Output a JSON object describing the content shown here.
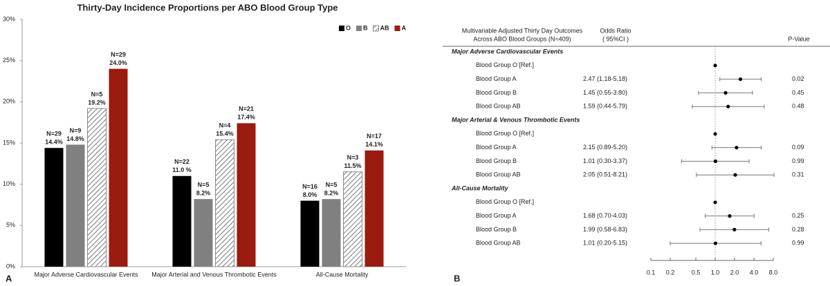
{
  "chart_data": [
    {
      "type": "bar",
      "panel": "A",
      "title": "Thirty-Day Incidence Proportions per ABO Blood Group Type",
      "categories": [
        "Major Adverse Cardiovascular Events",
        "Major Arterial and Venous Thrombotic Events",
        "All-Cause Mortality"
      ],
      "series": [
        {
          "name": "O",
          "color": "#000000",
          "values": [
            14.4,
            11.0,
            8.0
          ],
          "value_labels": [
            "14.4%",
            "11.0 %",
            "8.0%"
          ],
          "n_labels": [
            "N=29",
            "N=22",
            "N=16"
          ]
        },
        {
          "name": "B",
          "color": "#808080",
          "values": [
            14.8,
            8.2,
            8.2
          ],
          "value_labels": [
            "14.8%",
            "8.2%",
            "8.2%"
          ],
          "n_labels": [
            "N=9",
            "N=5",
            "N=5"
          ]
        },
        {
          "name": "AB",
          "color": "#ffffff",
          "pattern": "hatch",
          "values": [
            19.2,
            15.4,
            11.5
          ],
          "value_labels": [
            "19.2%",
            "15.4%",
            "11.5%"
          ],
          "n_labels": [
            "N=5",
            "N=4",
            "N=3"
          ]
        },
        {
          "name": "A",
          "color": "#9b1b0e",
          "values": [
            24.0,
            17.4,
            14.1
          ],
          "value_labels": [
            "24.0%",
            "17.4%",
            "14.1%"
          ],
          "n_labels": [
            "N=29",
            "N=21",
            "N=17"
          ]
        }
      ],
      "ylim": [
        0,
        30
      ],
      "yticks": [
        {
          "value": 0,
          "label": "0%"
        },
        {
          "value": 5,
          "label": "5%"
        },
        {
          "value": 10,
          "label": "10%"
        },
        {
          "value": 15,
          "label": "15%"
        },
        {
          "value": 20,
          "label": "20%"
        },
        {
          "value": 25,
          "label": "25%"
        },
        {
          "value": 30,
          "label": "30%"
        }
      ],
      "legend": "top-right"
    },
    {
      "type": "forest",
      "panel": "B",
      "header": [
        "Multivariable Adjusted Thirty Day Outcomes",
        "Across ABO Blood Groups (N=409)"
      ],
      "or_header": [
        "Odds Ratio",
        "( 95%CI )"
      ],
      "p_header": "P-Value",
      "xscale": "log",
      "xlim": [
        0.1,
        8
      ],
      "xticks": [
        0.1,
        0.2,
        0.5,
        {
          "value": 1,
          "label": "1.0"
        },
        {
          "value": 2,
          "label": "2.0"
        },
        {
          "value": 4,
          "label": "4.0"
        },
        {
          "value": 8,
          "label": "8.0"
        }
      ],
      "reference": 1,
      "groups": [
        {
          "title": "Major Adverse Cardiovascular Events",
          "rows": [
            {
              "label": "Blood Group O [Ref.]",
              "or": 1
            },
            {
              "label": "Blood Group A",
              "or": 2.47,
              "lower": 1.18,
              "upper": 5.18,
              "ci_label": "2.47 (1.18-5.18)",
              "p": 0.02
            },
            {
              "label": "Blood Group B",
              "or": 1.45,
              "lower": 0.55,
              "upper": 3.8,
              "ci_label": "1.45 (0.55-3.80)",
              "p": 0.45
            },
            {
              "label": "Blood Group AB",
              "or": 1.59,
              "lower": 0.44,
              "upper": 5.79,
              "ci_label": "1.59 (0.44-5.79)",
              "p": 0.48
            }
          ]
        },
        {
          "title": "Major Arterial & Venous Thrombotic Events",
          "rows": [
            {
              "label": "Blood Group O [Ref.]",
              "or": 1
            },
            {
              "label": "Blood Group A",
              "or": 2.15,
              "lower": 0.89,
              "upper": 5.2,
              "ci_label": "2.15 (0.89-5.20)",
              "p": 0.09
            },
            {
              "label": "Blood Group B",
              "or": 1.01,
              "lower": 0.3,
              "upper": 3.37,
              "ci_label": "1.01 (0.30-3.37)",
              "p": 0.99
            },
            {
              "label": "Blood Group AB",
              "or": 2.05,
              "lower": 0.51,
              "upper": 8.21,
              "ci_label": "2.05 (0.51-8.21)",
              "p": 0.31
            }
          ]
        },
        {
          "title": "All-Cause Mortality",
          "rows": [
            {
              "label": "Blood Group O [Ref.]",
              "or": 1
            },
            {
              "label": "Blood Group A",
              "or": 1.68,
              "lower": 0.7,
              "upper": 4.03,
              "ci_label": "1.68 (0.70-4.03)",
              "p": 0.25
            },
            {
              "label": "Blood Group B",
              "or": 1.99,
              "lower": 0.58,
              "upper": 6.83,
              "ci_label": "1.99 (0.58-6.83)",
              "p": 0.28
            },
            {
              "label": "Blood Group AB",
              "or": 1.01,
              "lower": 0.2,
              "upper": 5.15,
              "ci_label": "1.01 (0.20-5.15)",
              "p": 0.99
            }
          ]
        }
      ]
    }
  ]
}
